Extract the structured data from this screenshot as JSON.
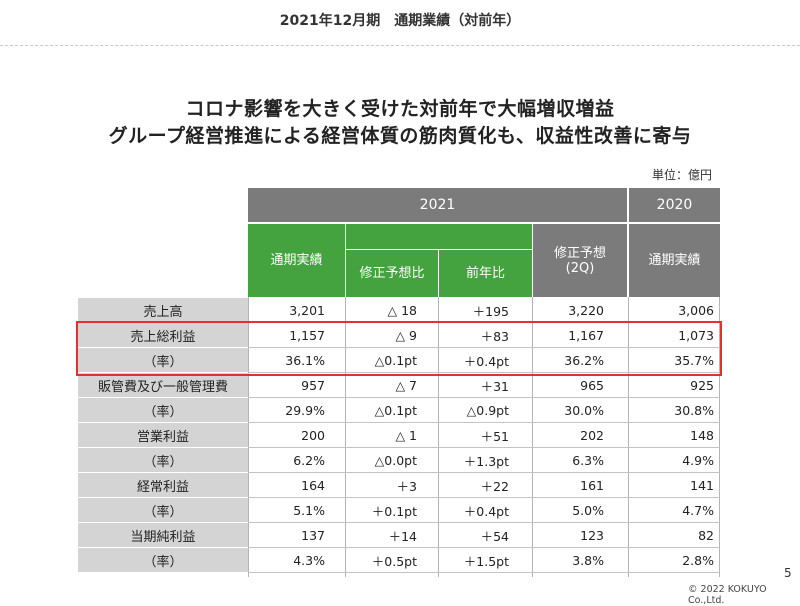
{
  "header": {
    "title": "2021年12月期　通期業績（対前年）"
  },
  "headline": {
    "line1": "コロナ影響を大きく受けた対前年で大幅増収増益",
    "line2": "グループ経営推進による経営体質の筋肉質化も、収益性改善に寄与"
  },
  "unit_label": "単位：億円",
  "table": {
    "year_2021": "2021",
    "year_2020": "2020",
    "col_actual_2021": "通期実績",
    "col_vs_forecast": "修正予想比",
    "col_vs_prev": "前年比",
    "col_forecast_line1": "修正予想",
    "col_forecast_line2": "(2Q)",
    "col_actual_2020": "通期実績",
    "rows": [
      {
        "label": "売上高",
        "actual": "3,201",
        "vs_forecast": "△ 18",
        "vs_prev": "＋195",
        "forecast": "3,220",
        "prev": "3,006"
      },
      {
        "label": "売上総利益",
        "actual": "1,157",
        "vs_forecast": "△ 9",
        "vs_prev": "＋83",
        "forecast": "1,167",
        "prev": "1,073"
      },
      {
        "label": "（率）",
        "actual": "36.1%",
        "vs_forecast": "△0.1pt",
        "vs_prev": "＋0.4pt",
        "forecast": "36.2%",
        "prev": "35.7%"
      },
      {
        "label": "販管費及び一般管理費",
        "actual": "957",
        "vs_forecast": "△ 7",
        "vs_prev": "＋31",
        "forecast": "965",
        "prev": "925"
      },
      {
        "label": "（率）",
        "actual": "29.9%",
        "vs_forecast": "△0.1pt",
        "vs_prev": "△0.9pt",
        "forecast": "30.0%",
        "prev": "30.8%"
      },
      {
        "label": "営業利益",
        "actual": "200",
        "vs_forecast": "△ 1",
        "vs_prev": "＋51",
        "forecast": "202",
        "prev": "148"
      },
      {
        "label": "（率）",
        "actual": "6.2%",
        "vs_forecast": "△0.0pt",
        "vs_prev": "＋1.3pt",
        "forecast": "6.3%",
        "prev": "4.9%"
      },
      {
        "label": "経常利益",
        "actual": "164",
        "vs_forecast": "＋3",
        "vs_prev": "＋22",
        "forecast": "161",
        "prev": "141"
      },
      {
        "label": "（率）",
        "actual": "5.1%",
        "vs_forecast": "＋0.1pt",
        "vs_prev": "＋0.4pt",
        "forecast": "5.0%",
        "prev": "4.7%"
      },
      {
        "label": "当期純利益",
        "actual": "137",
        "vs_forecast": "＋14",
        "vs_prev": "＋54",
        "forecast": "123",
        "prev": "82"
      },
      {
        "label": "（率）",
        "actual": "4.3%",
        "vs_forecast": "＋0.5pt",
        "vs_prev": "＋1.5pt",
        "forecast": "3.8%",
        "prev": "2.8%"
      }
    ]
  },
  "footer": {
    "page_number": "5",
    "copyright": "© 2022 KOKUYO Co.,Ltd."
  },
  "colors": {
    "header_gray": "#7b7b7b",
    "header_green": "#44a33f",
    "highlight_red": "#e53030",
    "label_gray": "#d4d4d4"
  }
}
